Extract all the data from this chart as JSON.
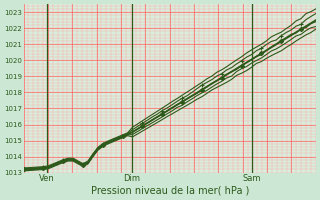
{
  "title": "",
  "xlabel": "Pression niveau de la mer( hPa )",
  "ylabel": "",
  "bg_color": "#cce8d4",
  "plot_bg_color": "#d8eedc",
  "line_color": "#2d5a1b",
  "ylim": [
    1013,
    1023.5
  ],
  "yticks": [
    1013,
    1014,
    1015,
    1016,
    1017,
    1018,
    1019,
    1020,
    1021,
    1022,
    1023
  ],
  "xtick_labels": [
    "Ven",
    "Dim",
    "Sam"
  ],
  "xtick_pos": [
    0.08,
    0.37,
    0.78
  ],
  "vline_pos": [
    0.08,
    0.37,
    0.78
  ]
}
